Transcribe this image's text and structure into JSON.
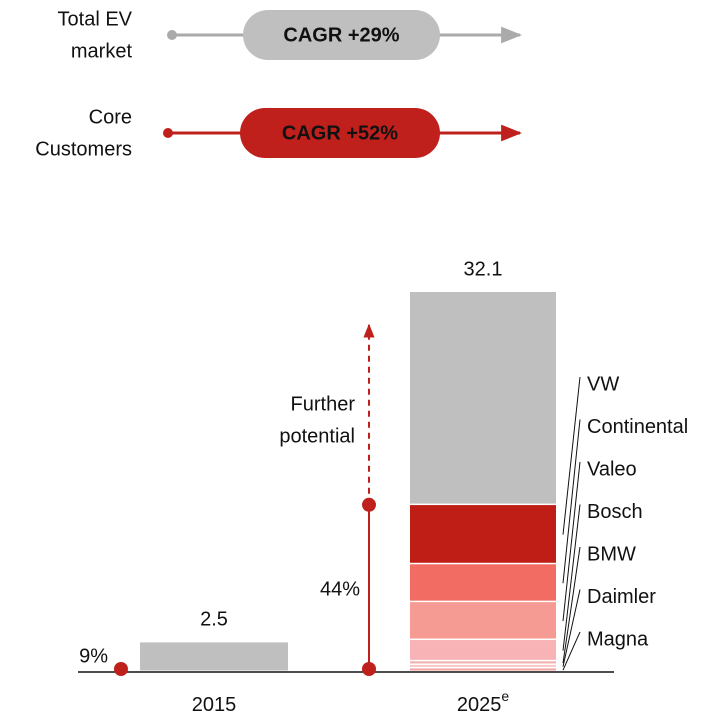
{
  "chart_data": {
    "type": "stacked_bar",
    "growth": [
      {
        "label": [
          "Total EV",
          "market"
        ],
        "badge": "CAGR +29%",
        "color": "#bfbfbf"
      },
      {
        "label": [
          "Core",
          "Customers"
        ],
        "badge": "CAGR +52%",
        "color": "#c0201c"
      }
    ],
    "categories": [
      "2015",
      "2025"
    ],
    "estimate_marker": "e",
    "totals": [
      2.5,
      32.1
    ],
    "core_share": [
      9,
      44
    ],
    "core_share_labels": [
      "9%",
      "44%"
    ],
    "potential_label": [
      "Further",
      "potential"
    ],
    "ylim": [
      0,
      32.1
    ],
    "series": [
      {
        "name": "Magna",
        "color": "#f4a3a3",
        "values": [
          null,
          0.3
        ]
      },
      {
        "name": "Daimler",
        "color": "#f9c9c9",
        "values": [
          null,
          0.3
        ]
      },
      {
        "name": "BMW",
        "color": "#f3aeae",
        "values": [
          null,
          0.3
        ]
      },
      {
        "name": "Bosch",
        "color": "#f7b3b5",
        "values": [
          null,
          1.8
        ]
      },
      {
        "name": "Valeo",
        "color": "#f59b93",
        "values": [
          null,
          3.2
        ]
      },
      {
        "name": "Continental",
        "color": "#f26c63",
        "values": [
          null,
          3.2
        ]
      },
      {
        "name": "VW",
        "color": "#be1e16",
        "values": [
          null,
          5.0
        ]
      },
      {
        "color": "#bfbfbf",
        "values": [
          2.5,
          18.0
        ]
      }
    ]
  }
}
